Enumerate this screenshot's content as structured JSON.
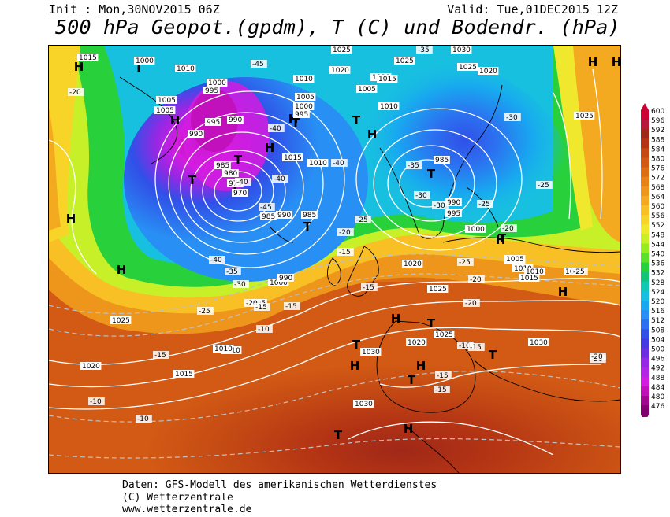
{
  "header": {
    "init": "Init : Mon,30NOV2015 06Z",
    "valid": "Valid: Tue,01DEC2015 12Z",
    "title": "500 hPa Geopot.(gpdm), T (C) und Bodendr. (hPa)"
  },
  "footer": {
    "line1": "Daten: GFS-Modell des amerikanischen Wetterdienstes",
    "line2": "(C) Wetterzentrale",
    "line3": "www.wetterzentrale.de"
  },
  "colorscale": {
    "labels": [
      "600",
      "596",
      "592",
      "588",
      "584",
      "580",
      "576",
      "572",
      "568",
      "564",
      "560",
      "556",
      "552",
      "548",
      "544",
      "540",
      "536",
      "532",
      "528",
      "524",
      "520",
      "516",
      "512",
      "508",
      "504",
      "500",
      "496",
      "492",
      "488",
      "484",
      "480",
      "476"
    ],
    "colors": [
      "#cc0033",
      "#b8183c",
      "#a02818",
      "#b43414",
      "#c44a14",
      "#d25a14",
      "#dc6e14",
      "#e68218",
      "#ee961c",
      "#f4aa20",
      "#f8c024",
      "#f8d428",
      "#f0e82c",
      "#c8f028",
      "#96ec20",
      "#5ae028",
      "#28d03c",
      "#14c478",
      "#10c8b4",
      "#18c0e0",
      "#18a8f0",
      "#2890f4",
      "#2c70f0",
      "#3050e8",
      "#4438e0",
      "#6c2ce0",
      "#9428e4",
      "#b424e4",
      "#d41ce0",
      "#c010b8",
      "#a00890",
      "#800070"
    ]
  },
  "map": {
    "pressure_centers": [
      {
        "label": "H"
      },
      {
        "label": "H"
      },
      {
        "label": "H"
      },
      {
        "label": "H"
      },
      {
        "label": "H"
      },
      {
        "label": "H"
      },
      {
        "label": "H"
      },
      {
        "label": "H"
      },
      {
        "label": "H"
      },
      {
        "label": "H"
      },
      {
        "label": "H"
      },
      {
        "label": "H"
      },
      {
        "label": "H"
      },
      {
        "label": "H"
      },
      {
        "label": "H"
      },
      {
        "label": "T"
      },
      {
        "label": "T"
      },
      {
        "label": "T"
      },
      {
        "label": "T"
      },
      {
        "label": "T"
      },
      {
        "label": "T"
      },
      {
        "label": "T"
      },
      {
        "label": "T"
      },
      {
        "label": "T"
      },
      {
        "label": "T"
      },
      {
        "label": "T"
      },
      {
        "label": "T"
      },
      {
        "label": "T"
      },
      {
        "label": "T"
      }
    ],
    "isobar_labels": [
      "1015",
      "1000",
      "1010",
      "1000",
      "995",
      "1005",
      "1005",
      "995",
      "990",
      "990",
      "985",
      "980",
      "975",
      "970",
      "985",
      "990",
      "985",
      "1025",
      "1020",
      "1010",
      "1005",
      "1000",
      "995",
      "1015",
      "1010",
      "1020",
      "1025",
      "1015",
      "1005",
      "1010",
      "985",
      "990",
      "995",
      "1000",
      "1005",
      "1010",
      "1015",
      "1020",
      "1025",
      "1030",
      "1025",
      "1020",
      "1025",
      "1015",
      "1010",
      "1005",
      "1000",
      "995",
      "990",
      "1020",
      "1015",
      "1010",
      "1025",
      "1030",
      "1030",
      "1025",
      "1030",
      "1010",
      "1020"
    ],
    "temp_labels": [
      "-20",
      "-45",
      "-40",
      "-40",
      "-45",
      "-40",
      "-40",
      "-35",
      "-30",
      "-25",
      "-20",
      "-25",
      "-40",
      "-35",
      "-35",
      "-30",
      "-25",
      "-20",
      "-15",
      "-10",
      "-10",
      "-15",
      "-30",
      "-25",
      "-20",
      "-15",
      "-30",
      "-25",
      "-20",
      "-20",
      "-15",
      "-10",
      "-15",
      "-15",
      "-10",
      "-25",
      "-20",
      "-15",
      "-15",
      "-20"
    ]
  }
}
